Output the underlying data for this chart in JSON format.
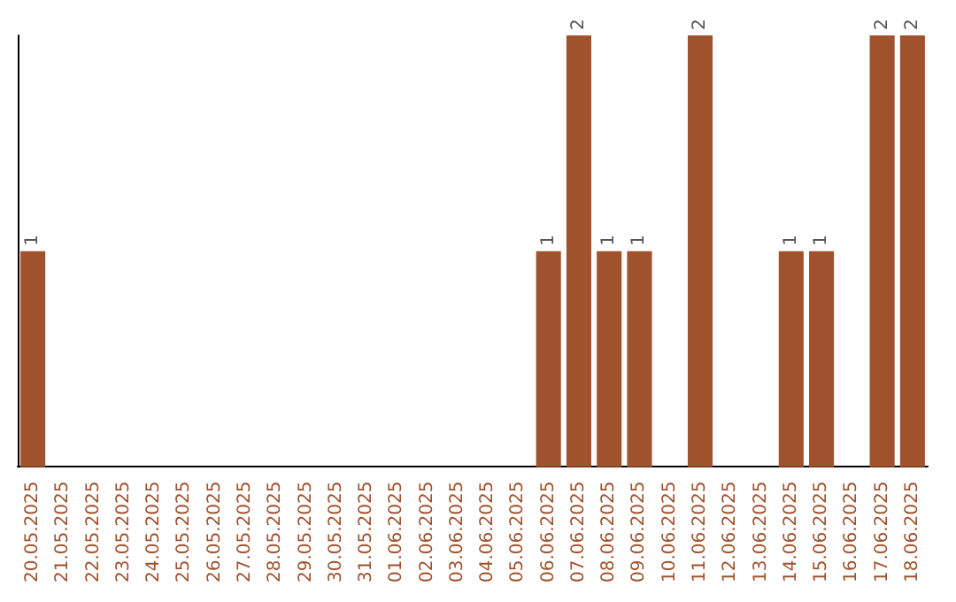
{
  "chart_data": {
    "type": "bar",
    "categories": [
      "20.05.2025",
      "21.05.2025",
      "22.05.2025",
      "23.05.2025",
      "24.05.2025",
      "25.05.2025",
      "26.05.2025",
      "27.05.2025",
      "28.05.2025",
      "29.05.2025",
      "30.05.2025",
      "31.05.2025",
      "01.06.2025",
      "02.06.2025",
      "03.06.2025",
      "04.06.2025",
      "05.06.2025",
      "06.06.2025",
      "07.06.2025",
      "08.06.2025",
      "09.06.2025",
      "10.06.2025",
      "11.06.2025",
      "12.06.2025",
      "13.06.2025",
      "14.06.2025",
      "15.06.2025",
      "16.06.2025",
      "17.06.2025",
      "18.06.2025"
    ],
    "values": [
      1,
      0,
      0,
      0,
      0,
      0,
      0,
      0,
      0,
      0,
      0,
      0,
      0,
      0,
      0,
      0,
      0,
      1,
      2,
      1,
      1,
      0,
      2,
      0,
      0,
      1,
      1,
      0,
      2,
      2
    ],
    "value_labels": [
      "1",
      null,
      null,
      null,
      null,
      null,
      null,
      null,
      null,
      null,
      null,
      null,
      null,
      null,
      null,
      null,
      null,
      "1",
      "2",
      "1",
      "1",
      null,
      "2",
      null,
      null,
      "1",
      "1",
      null,
      "2",
      "2"
    ],
    "color": "#a0522d",
    "ylim": [
      0,
      2
    ],
    "tick_labels": "x",
    "grid": false
  }
}
